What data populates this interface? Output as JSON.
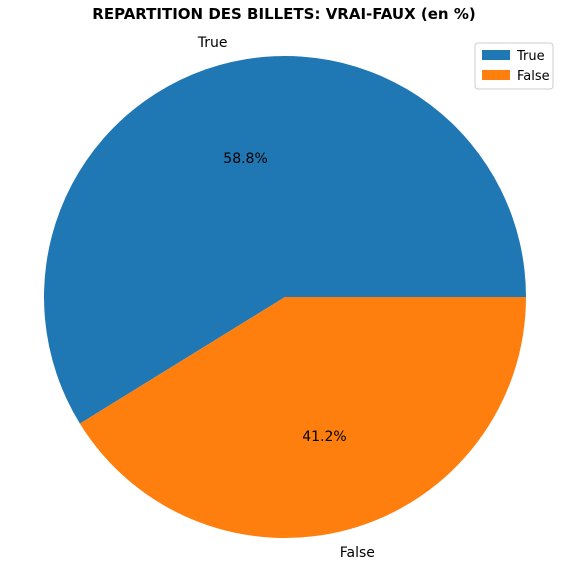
{
  "chart_data": {
    "type": "pie",
    "title": "REPARTITION DES BILLETS: VRAI-FAUX (en %)",
    "categories": [
      "True",
      "False"
    ],
    "values": [
      58.8,
      41.2
    ],
    "percent_labels": [
      "58.8%",
      "41.2%"
    ],
    "colors": [
      "#1f77b4",
      "#ff7f0e"
    ],
    "start_angle_deg": 0,
    "direction": "counterclockwise",
    "legend": {
      "position": "top-right",
      "entries": [
        "True",
        "False"
      ]
    }
  }
}
